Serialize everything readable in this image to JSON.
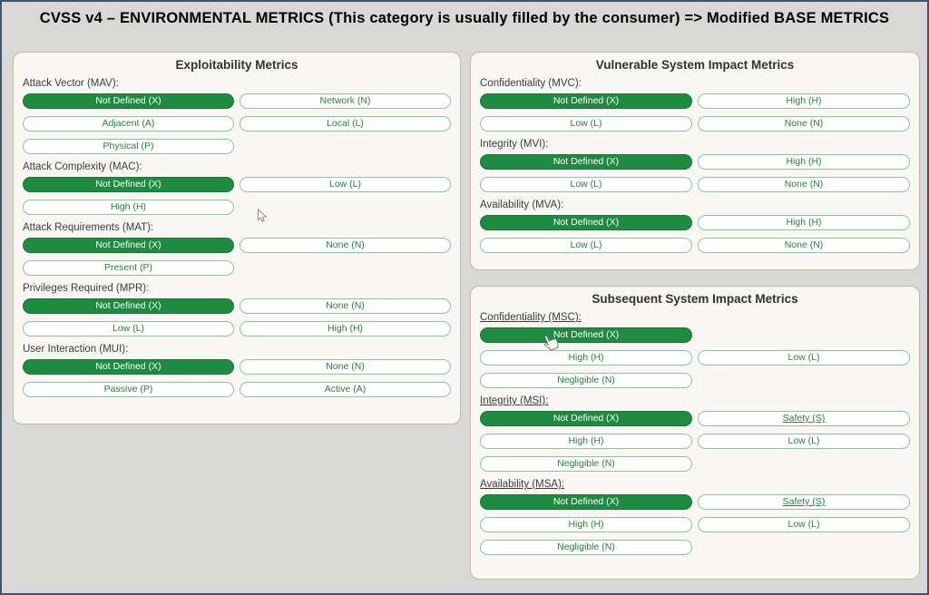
{
  "title": "CVSS v4 – ENVIRONMENTAL METRICS (This category is usually filled by the consumer) => Modified BASE METRICS",
  "colors": {
    "selected_button_bg": "#1f8b40",
    "selected_button_text": "#ffffff",
    "option_button_border": "#8fc49e",
    "option_button_text": "#2c7c47",
    "panel_bg": "#f8f7f4",
    "panel_border": "#c9b996",
    "page_bg": "#d8d8d6",
    "outer_border": "#43526b"
  },
  "icons": {
    "arrow_cursor": "mouse-arrow-pointer-icon",
    "hand_cursor": "mouse-hand-pointer-icon"
  },
  "panels": [
    {
      "title": "Exploitability Metrics",
      "groups": [
        {
          "label": "Attack Vector (MAV):",
          "underline": false,
          "rows": [
            [
              {
                "label": "Not Defined (X)",
                "selected": true
              },
              {
                "label": "Network (N)",
                "selected": false
              }
            ],
            [
              {
                "label": "Adjacent (A)",
                "selected": false
              },
              {
                "label": "Local (L)",
                "selected": false
              }
            ],
            [
              {
                "label": "Physical (P)",
                "selected": false
              }
            ]
          ]
        },
        {
          "label": "Attack Complexity (MAC):",
          "underline": false,
          "rows": [
            [
              {
                "label": "Not Defined (X)",
                "selected": true
              },
              {
                "label": "Low (L)",
                "selected": false
              }
            ],
            [
              {
                "label": "High (H)",
                "selected": false
              }
            ]
          ]
        },
        {
          "label": "Attack Requirements (MAT):",
          "underline": false,
          "rows": [
            [
              {
                "label": "Not Defined (X)",
                "selected": true
              },
              {
                "label": "None (N)",
                "selected": false
              }
            ],
            [
              {
                "label": "Present (P)",
                "selected": false
              }
            ]
          ]
        },
        {
          "label": "Privileges Required (MPR):",
          "underline": false,
          "rows": [
            [
              {
                "label": "Not Defined (X)",
                "selected": true
              },
              {
                "label": "None (N)",
                "selected": false
              }
            ],
            [
              {
                "label": "Low (L)",
                "selected": false
              },
              {
                "label": "High (H)",
                "selected": false
              }
            ]
          ]
        },
        {
          "label": "User Interaction (MUI):",
          "underline": false,
          "rows": [
            [
              {
                "label": "Not Defined (X)",
                "selected": true
              },
              {
                "label": "None (N)",
                "selected": false
              }
            ],
            [
              {
                "label": "Passive (P)",
                "selected": false
              },
              {
                "label": "Active (A)",
                "selected": false
              }
            ]
          ]
        }
      ]
    },
    {
      "title": "Vulnerable System Impact Metrics",
      "groups": [
        {
          "label": "Confidentiality (MVC):",
          "underline": false,
          "rows": [
            [
              {
                "label": "Not Defined (X)",
                "selected": true
              },
              {
                "label": "High (H)",
                "selected": false
              }
            ],
            [
              {
                "label": "Low (L)",
                "selected": false
              },
              {
                "label": "None (N)",
                "selected": false
              }
            ]
          ]
        },
        {
          "label": "Integrity (MVI):",
          "underline": false,
          "rows": [
            [
              {
                "label": "Not Defined (X)",
                "selected": true
              },
              {
                "label": "High (H)",
                "selected": false
              }
            ],
            [
              {
                "label": "Low (L)",
                "selected": false
              },
              {
                "label": "None (N)",
                "selected": false
              }
            ]
          ]
        },
        {
          "label": "Availability (MVA):",
          "underline": false,
          "rows": [
            [
              {
                "label": "Not Defined (X)",
                "selected": true
              },
              {
                "label": "High (H)",
                "selected": false
              }
            ],
            [
              {
                "label": "Low (L)",
                "selected": false
              },
              {
                "label": "None (N)",
                "selected": false
              }
            ]
          ]
        }
      ]
    },
    {
      "title": "Subsequent System Impact Metrics",
      "groups": [
        {
          "label": "Confidentiality (MSC):",
          "underline": true,
          "rows": [
            [
              {
                "label": "Not Defined (X)",
                "selected": true
              }
            ],
            [
              {
                "label": "High (H)",
                "selected": false
              },
              {
                "label": "Low (L)",
                "selected": false
              }
            ],
            [
              {
                "label": "Negligible (N)",
                "selected": false
              }
            ]
          ]
        },
        {
          "label": "Integrity (MSI):",
          "underline": true,
          "rows": [
            [
              {
                "label": "Not Defined (X)",
                "selected": true
              },
              {
                "label": "Safety (S)",
                "selected": false,
                "underline": true
              }
            ],
            [
              {
                "label": "High (H)",
                "selected": false
              },
              {
                "label": "Low (L)",
                "selected": false
              }
            ],
            [
              {
                "label": "Negligible (N)",
                "selected": false
              }
            ]
          ]
        },
        {
          "label": "Availability (MSA):",
          "underline": true,
          "rows": [
            [
              {
                "label": "Not Defined (X)",
                "selected": true
              },
              {
                "label": "Safety (S)",
                "selected": false,
                "underline": true
              }
            ],
            [
              {
                "label": "High (H)",
                "selected": false
              },
              {
                "label": "Low (L)",
                "selected": false
              }
            ],
            [
              {
                "label": "Negligible (N)",
                "selected": false
              }
            ]
          ]
        }
      ]
    }
  ]
}
